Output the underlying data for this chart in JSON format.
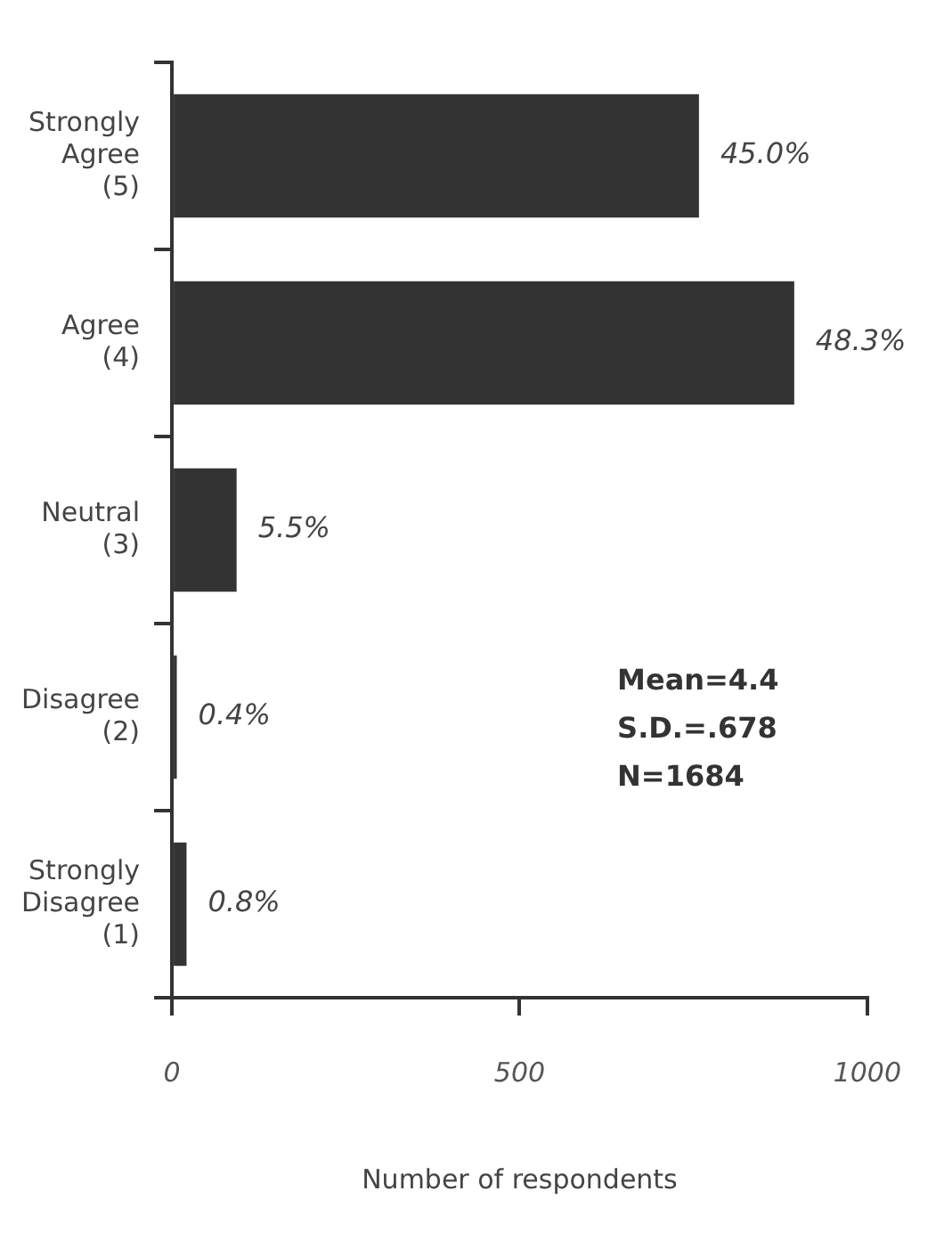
{
  "chart_data": {
    "type": "bar",
    "orientation": "horizontal",
    "categories": [
      "Strongly\nAgree\n(5)",
      "Agree\n(4)",
      "Neutral\n(3)",
      "Disagree\n(2)",
      "Strongly\nDisagree\n(1)"
    ],
    "values": [
      758,
      895,
      93,
      7,
      21
    ],
    "color": "#333333",
    "xlim": [
      0,
      1000
    ],
    "xticks": [
      0,
      500,
      1000
    ],
    "xlabel": "Number of respondents",
    "annotations": [
      {
        "text": "45.0%",
        "x": 758,
        "y": "Strongly\nAgree\n(5)"
      },
      {
        "text": "48.3%",
        "x": 895,
        "y": "Agree\n(4)"
      },
      {
        "text": "5.5%",
        "x": 93,
        "y": "Neutral\n(3)"
      },
      {
        "text": "0.4%",
        "x": 7,
        "y": "Disagree\n(2)"
      },
      {
        "text": "0.8%",
        "x": 21,
        "y": "Strongly\nDisagree\n(1)"
      },
      "Mean=4.4",
      "S.D.=.678",
      "N=1684"
    ],
    "grid": false,
    "legend": false
  }
}
